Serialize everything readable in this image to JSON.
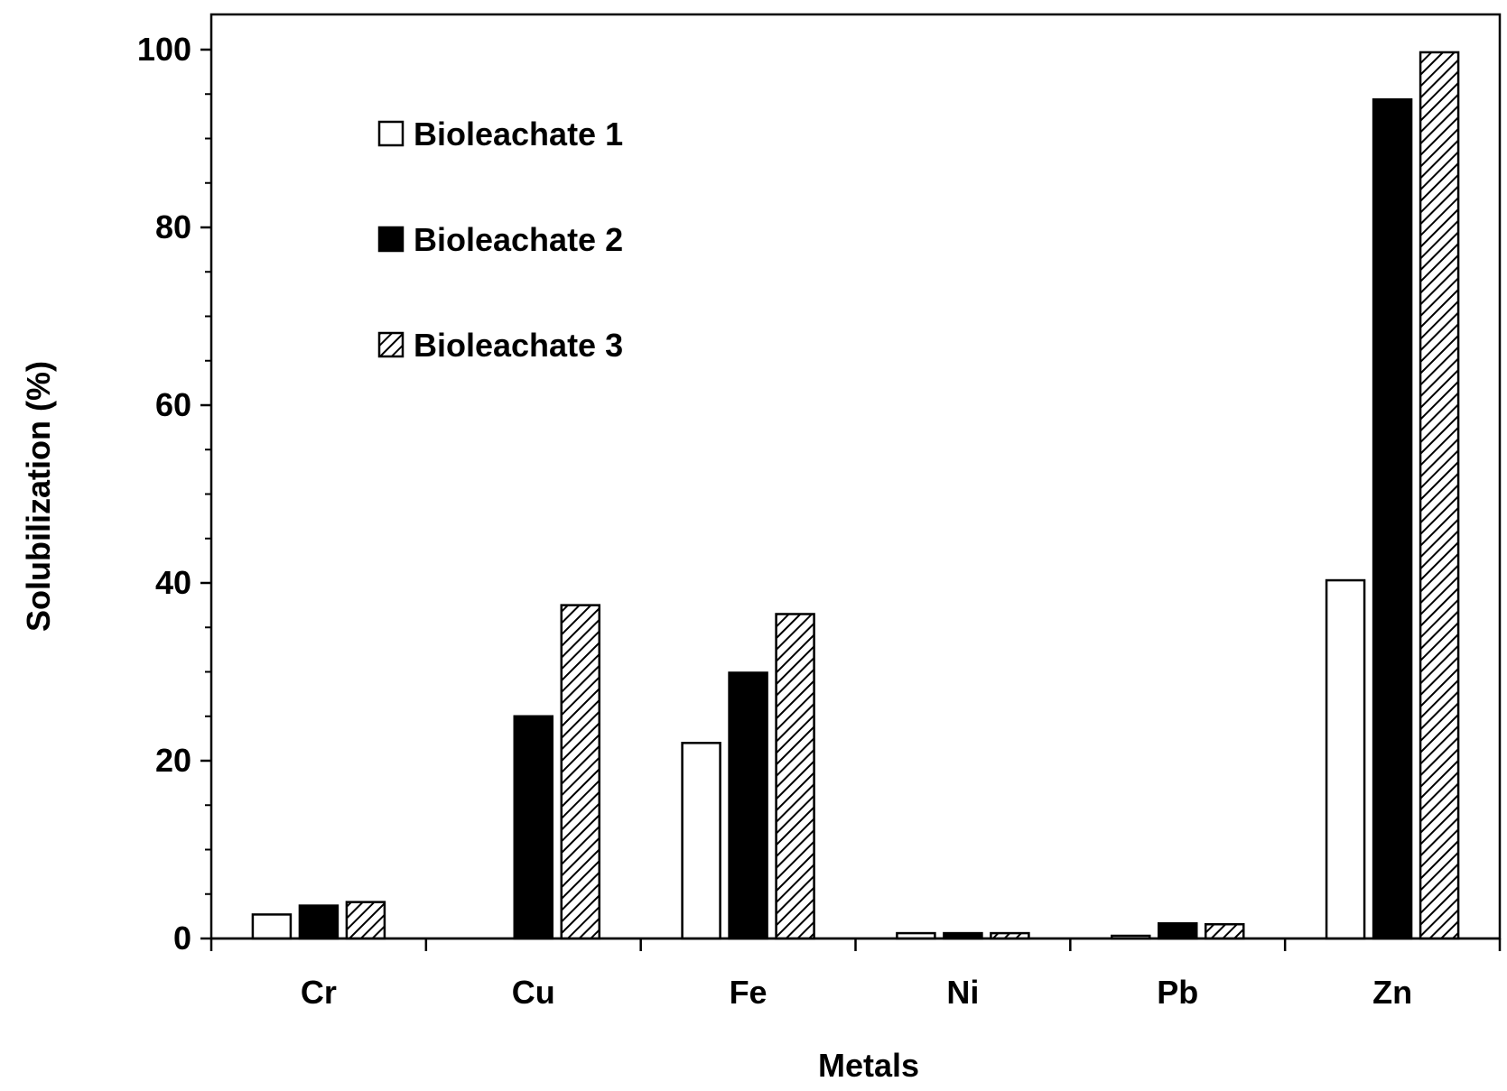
{
  "chart_data": {
    "type": "bar",
    "title": "",
    "xlabel": "Metals",
    "ylabel": "Solubilization (%)",
    "ylim": [
      0,
      100
    ],
    "yticks": [
      0,
      20,
      40,
      60,
      80,
      100
    ],
    "grid": false,
    "legend_position": "top-left",
    "categories": [
      "Cr",
      "Cu",
      "Fe",
      "Ni",
      "Pb",
      "Zn"
    ],
    "series": [
      {
        "name": "Bioleachate 1",
        "pattern": "white",
        "values": [
          2.7,
          0,
          22.0,
          0.6,
          0.3,
          40.3
        ]
      },
      {
        "name": "Bioleachate 2",
        "pattern": "black",
        "values": [
          3.7,
          25.0,
          29.9,
          0.6,
          1.7,
          94.4
        ]
      },
      {
        "name": "Bioleachate 3",
        "pattern": "hatched",
        "values": [
          4.1,
          37.5,
          36.5,
          0.6,
          1.6,
          99.7
        ]
      }
    ]
  }
}
